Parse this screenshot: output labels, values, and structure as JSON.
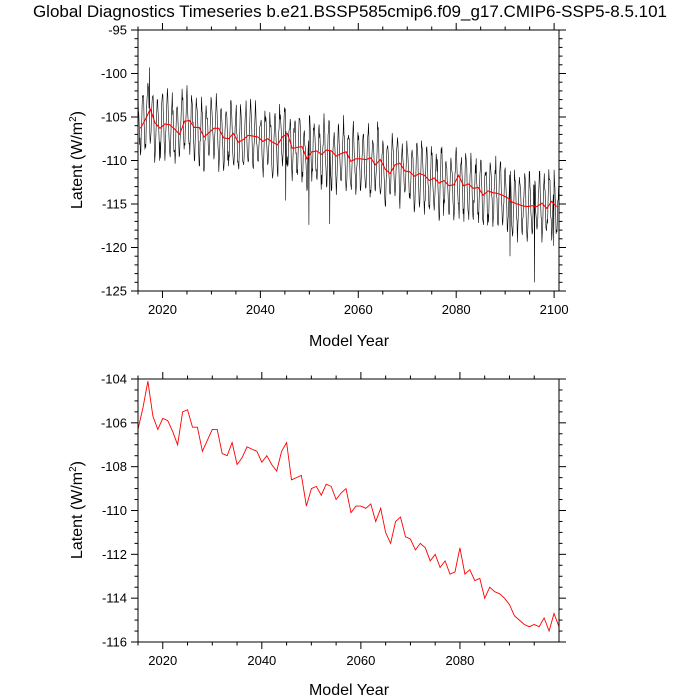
{
  "title": "Global Diagnostics Timeseries b.e21.BSSP585cmip6.f09_g17.CMIP6-SSP5-8.5.101",
  "colors": {
    "monthly": "#000000",
    "annual": "#ff0000",
    "axes": "#000000"
  },
  "chart_data": [
    {
      "type": "line",
      "name": "top-panel",
      "xlabel": "Model Year",
      "ylabel_main": "Latent (W/m",
      "ylabel_sup": "2",
      "ylabel_close": ")",
      "xlim": [
        2015,
        2101
      ],
      "ylim": [
        -125,
        -95
      ],
      "xticks": [
        2020,
        2040,
        2060,
        2080,
        2100
      ],
      "xtick_labels": [
        "2020",
        "2040",
        "2060",
        "2080",
        "2100"
      ],
      "yticks": [
        -125,
        -120,
        -115,
        -110,
        -105,
        -100,
        -95
      ],
      "ytick_labels": [
        "-125",
        "-120",
        "-115",
        "-110",
        "-105",
        "-100",
        "-95"
      ],
      "series": [
        {
          "name": "monthly",
          "color": "#000000",
          "description_of_generation": "monthly samples, seasonal oscillation amplitude ~3.5 W/m2 around annual mean, occasional extremes",
          "spikes": [
            [
              2017.3,
              -99.3
            ],
            [
              2045.2,
              -114.6
            ],
            [
              2049.9,
              -117.4
            ],
            [
              2054.2,
              -117.3
            ],
            [
              2091.0,
              -121.0
            ],
            [
              2096.0,
              -124.0
            ],
            [
              2099.9,
              -119.8
            ]
          ]
        },
        {
          "name": "annual",
          "color": "#ff0000"
        }
      ]
    },
    {
      "type": "line",
      "name": "bottom-panel",
      "xlabel": "Model Year",
      "ylabel_main": "Latent (W/m",
      "ylabel_sup": "2",
      "ylabel_close": ")",
      "xlim": [
        2015,
        2100
      ],
      "ylim": [
        -116,
        -104
      ],
      "xticks": [
        2020,
        2040,
        2060,
        2080
      ],
      "xtick_labels": [
        "2020",
        "2040",
        "2060",
        "2080"
      ],
      "yticks": [
        -116,
        -114,
        -112,
        -110,
        -108,
        -106,
        -104
      ],
      "ytick_labels": [
        "-116",
        "-114",
        "-112",
        "-110",
        "-108",
        "-106",
        "-104"
      ],
      "series": [
        {
          "name": "annual",
          "color": "#ff0000",
          "x": [
            2015,
            2016,
            2017,
            2018,
            2019,
            2020,
            2021,
            2022,
            2023,
            2024,
            2025,
            2026,
            2027,
            2028,
            2029,
            2030,
            2031,
            2032,
            2033,
            2034,
            2035,
            2036,
            2037,
            2038,
            2039,
            2040,
            2041,
            2042,
            2043,
            2044,
            2045,
            2046,
            2047,
            2048,
            2049,
            2050,
            2051,
            2052,
            2053,
            2054,
            2055,
            2056,
            2057,
            2058,
            2059,
            2060,
            2061,
            2062,
            2063,
            2064,
            2065,
            2066,
            2067,
            2068,
            2069,
            2070,
            2071,
            2072,
            2073,
            2074,
            2075,
            2076,
            2077,
            2078,
            2079,
            2080,
            2081,
            2082,
            2083,
            2084,
            2085,
            2086,
            2087,
            2088,
            2089,
            2090,
            2091,
            2092,
            2093,
            2094,
            2095,
            2096,
            2097,
            2098,
            2099,
            2100
          ],
          "values": [
            -106.3,
            -105.3,
            -104.1,
            -105.7,
            -106.3,
            -105.8,
            -105.9,
            -106.4,
            -107.0,
            -105.5,
            -105.4,
            -106.2,
            -106.2,
            -107.3,
            -106.8,
            -106.3,
            -106.3,
            -107.4,
            -107.5,
            -106.9,
            -107.9,
            -107.6,
            -107.1,
            -107.2,
            -107.3,
            -107.8,
            -107.5,
            -107.9,
            -108.2,
            -107.3,
            -106.9,
            -108.6,
            -108.5,
            -108.4,
            -109.8,
            -109.0,
            -108.9,
            -109.3,
            -108.8,
            -108.9,
            -109.5,
            -109.2,
            -109.0,
            -110.1,
            -109.8,
            -109.8,
            -109.9,
            -109.7,
            -110.5,
            -109.9,
            -111.0,
            -111.5,
            -110.5,
            -110.3,
            -111.2,
            -111.3,
            -111.8,
            -111.5,
            -111.7,
            -112.3,
            -112.0,
            -112.6,
            -112.3,
            -112.9,
            -112.8,
            -111.7,
            -112.9,
            -112.7,
            -113.2,
            -113.1,
            -114.0,
            -113.5,
            -113.7,
            -113.8,
            -114.0,
            -114.3,
            -114.8,
            -115.0,
            -115.2,
            -115.3,
            -115.2,
            -115.3,
            -114.9,
            -115.5,
            -114.7,
            -115.3
          ]
        }
      ]
    }
  ]
}
